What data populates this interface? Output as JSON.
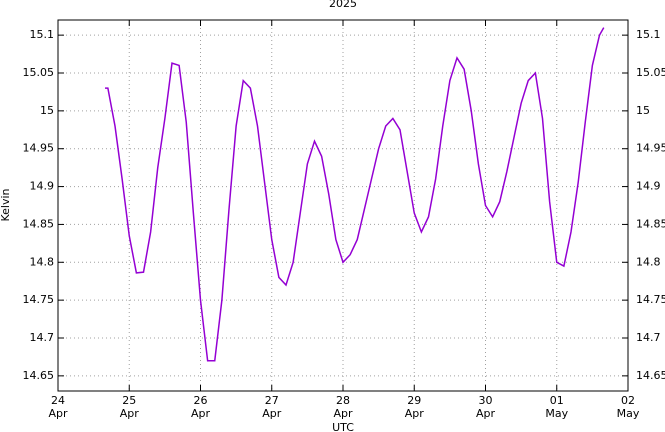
{
  "chart_data": {
    "type": "line",
    "title": "2025",
    "xlabel": "UTC",
    "ylabel": "Kelvin",
    "x": [
      24.66,
      24.7,
      24.8,
      24.9,
      25.0,
      25.1,
      25.2,
      25.3,
      25.4,
      25.5,
      25.6,
      25.7,
      25.8,
      25.9,
      26.0,
      26.1,
      26.2,
      26.3,
      26.4,
      26.5,
      26.6,
      26.7,
      26.8,
      26.9,
      27.0,
      27.1,
      27.2,
      27.3,
      27.4,
      27.5,
      27.6,
      27.7,
      27.8,
      27.9,
      28.0,
      28.1,
      28.2,
      28.3,
      28.4,
      28.5,
      28.6,
      28.7,
      28.8,
      28.9,
      29.0,
      29.1,
      29.2,
      29.3,
      29.4,
      29.5,
      29.6,
      29.7,
      29.8,
      29.9,
      30.0,
      30.1,
      30.2,
      30.3,
      30.4,
      30.5,
      30.6,
      30.7,
      30.8,
      30.9,
      31.0,
      31.1,
      31.2,
      31.3,
      31.4,
      31.5,
      31.6,
      31.66
    ],
    "series": [
      {
        "name": "Kelvin",
        "color": "#9400d3",
        "values": [
          15.03,
          15.03,
          14.98,
          14.91,
          14.835,
          14.786,
          14.787,
          14.84,
          14.925,
          14.99,
          15.063,
          15.06,
          14.985,
          14.865,
          14.75,
          14.67,
          14.67,
          14.75,
          14.87,
          14.98,
          15.04,
          15.03,
          14.98,
          14.905,
          14.83,
          14.78,
          14.77,
          14.8,
          14.865,
          14.93,
          14.96,
          14.94,
          14.89,
          14.83,
          14.8,
          14.81,
          14.83,
          14.87,
          14.91,
          14.95,
          14.98,
          14.99,
          14.975,
          14.92,
          14.865,
          14.84,
          14.86,
          14.91,
          14.98,
          15.04,
          15.07,
          15.055,
          15.0,
          14.93,
          14.875,
          14.86,
          14.88,
          14.92,
          14.965,
          15.01,
          15.04,
          15.05,
          14.99,
          14.88,
          14.8,
          14.795,
          14.84,
          14.905,
          14.985,
          15.06,
          15.1,
          15.11
        ]
      }
    ],
    "xlim": [
      24,
      32
    ],
    "ylim": [
      14.63,
      15.12
    ],
    "xticks": [
      {
        "value": 24,
        "label": "24 Apr"
      },
      {
        "value": 25,
        "label": "25 Apr"
      },
      {
        "value": 26,
        "label": "26 Apr"
      },
      {
        "value": 27,
        "label": "27 Apr"
      },
      {
        "value": 28,
        "label": "28 Apr"
      },
      {
        "value": 29,
        "label": "29 Apr"
      },
      {
        "value": 30,
        "label": "30 Apr"
      },
      {
        "value": 31,
        "label": "01 May"
      },
      {
        "value": 32,
        "label": "02 May"
      }
    ],
    "yticks": [
      14.65,
      14.7,
      14.75,
      14.8,
      14.85,
      14.9,
      14.95,
      15,
      15.05,
      15.1
    ],
    "grid": true
  }
}
